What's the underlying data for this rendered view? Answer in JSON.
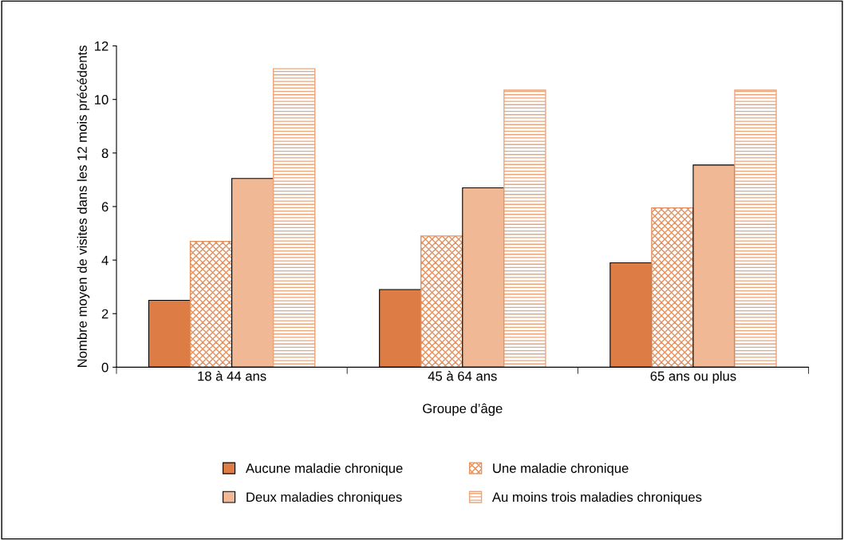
{
  "chart_data": {
    "type": "bar",
    "xlabel": "Groupe d’âge",
    "ylabel": "Nombre moyen de visites dans les 12 mois précédents",
    "categories": [
      "18 à 44 ans",
      "45 à 64 ans",
      "65 ans ou plus"
    ],
    "series": [
      {
        "name": "Aucune maladie chronique",
        "color": "#dd7d45",
        "values": [
          2.5,
          2.9,
          3.9
        ]
      },
      {
        "name": "Une maladie chronique",
        "color": "#e3905f",
        "values": [
          4.7,
          4.9,
          5.95
        ]
      },
      {
        "name": "Deux maladies chroniques",
        "color": "#f0b894",
        "values": [
          7.05,
          6.7,
          7.55
        ]
      },
      {
        "name": "Au moins trois maladies chroniques",
        "color": "#eaa57a",
        "values": [
          11.15,
          10.35,
          10.35
        ]
      }
    ],
    "ylim": [
      0,
      12
    ],
    "yticks": [
      0,
      2,
      4,
      6,
      8,
      10,
      12
    ],
    "grid": false,
    "legend": "bottom"
  }
}
